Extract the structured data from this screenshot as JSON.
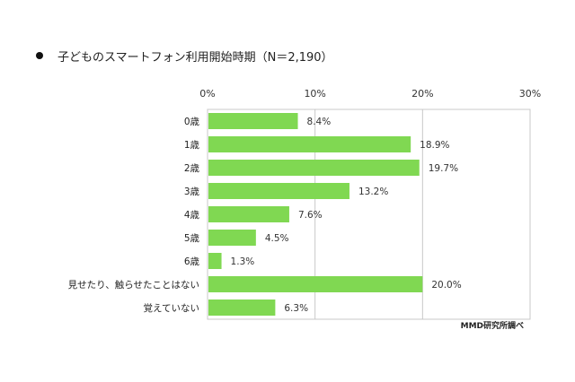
{
  "chart_data": {
    "type": "bar",
    "orientation": "horizontal",
    "title": "子どものスマートフォン利用開始時期（N＝2,190）",
    "categories": [
      "0歳",
      "1歳",
      "2歳",
      "3歳",
      "4歳",
      "5歳",
      "6歳",
      "見せたり、触らせたことはない",
      "覚えていない"
    ],
    "values": [
      8.4,
      18.9,
      19.7,
      13.2,
      7.6,
      4.5,
      1.3,
      20.0,
      6.3
    ],
    "data_labels": [
      "8.4%",
      "18.9%",
      "19.7%",
      "13.2%",
      "7.6%",
      "4.5%",
      "1.3%",
      "20.0%",
      "6.3%"
    ],
    "xlim": [
      0,
      30
    ],
    "xticks": [
      "0%",
      "10%",
      "20%",
      "30%"
    ],
    "xaxis_position": "top",
    "grid": true,
    "bar_color": "#80D852",
    "source": "MMD研究所調べ"
  }
}
